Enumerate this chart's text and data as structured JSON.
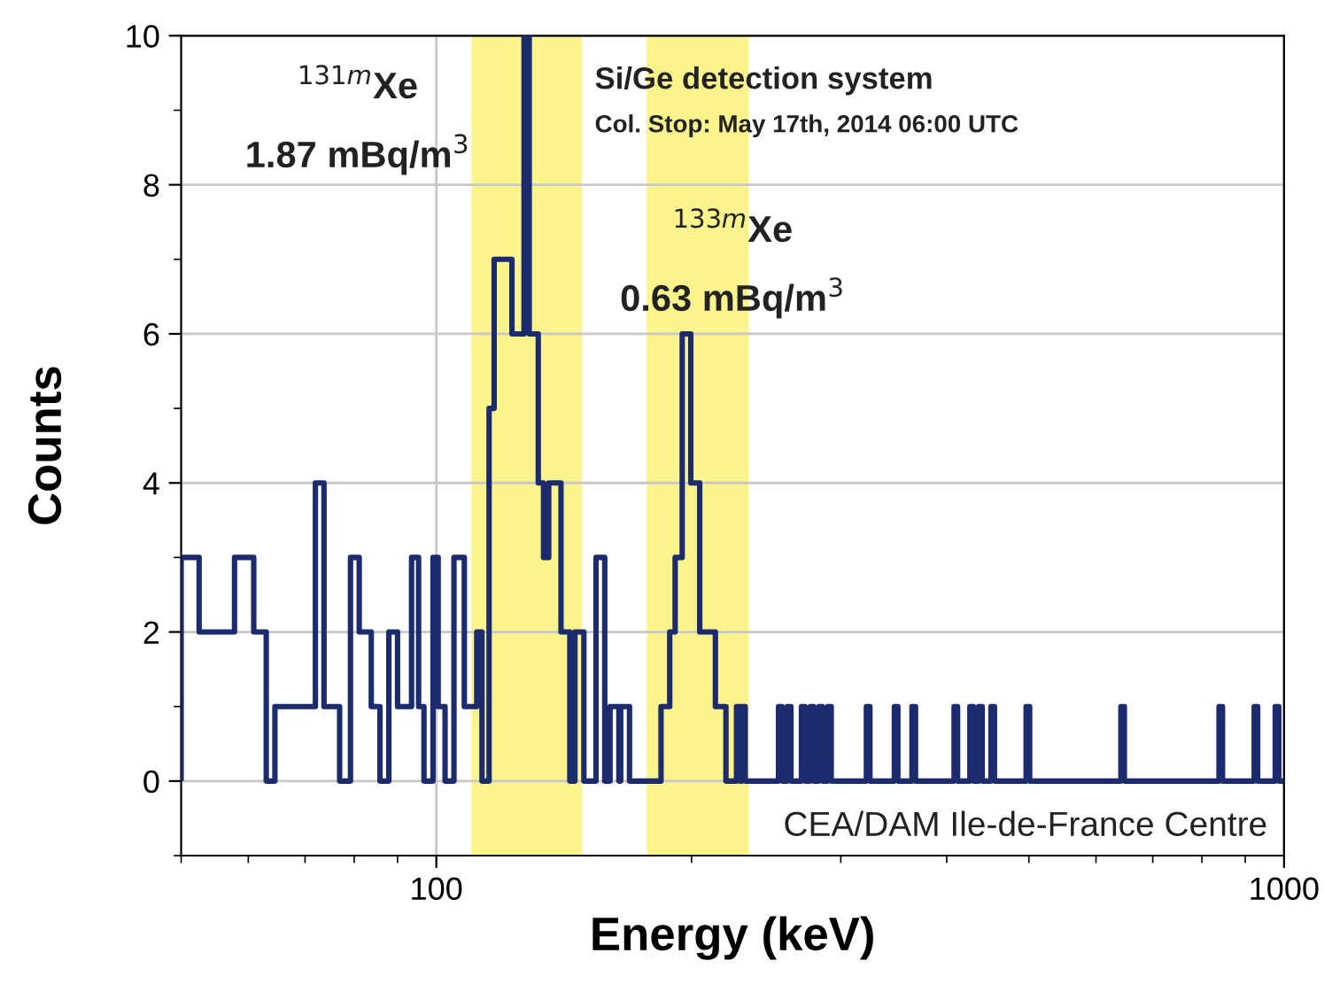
{
  "chart_data": {
    "type": "histogram",
    "xlabel": "Energy (keV)",
    "ylabel": "Counts",
    "bins": [
      50,
      52.5,
      57.8,
      60.9,
      63.0,
      64.5,
      72.0,
      73.7,
      76.9,
      79.2,
      81.1,
      83.8,
      85.8,
      87.9,
      90.0,
      93.5,
      95.3,
      96.7,
      99.1,
      100.5,
      102.4,
      104.9,
      107.9,
      111.6,
      113.2,
      115.4,
      117.0,
      122.8,
      126.9,
      128.7,
      131.9,
      133.8,
      135.7,
      140.3,
      143.7,
      145.7,
      149.3,
      154.3,
      158.0,
      160.3,
      164.2,
      165.0,
      169.0,
      184.1,
      188.5,
      191.3,
      195.0,
      199.6,
      204.5,
      213.4,
      219.6,
      226.0,
      228.2,
      229.3,
      231.4,
      253.3,
      255.8,
      259.5,
      262.0,
      269.6,
      272.2,
      276.1,
      278.7,
      282.7,
      285.4,
      289.5,
      292.3,
      321.6,
      324.7,
      347.0,
      350.3,
      364.0,
      367.5,
      408.1,
      412.0,
      426.0,
      430.1,
      436.3,
      440.5,
      451.1,
      455.4,
      496.3,
      501.1,
      642.0,
      648.1,
      838.1,
      846.1,
      922.1,
      930.9,
      976.3,
      985.8,
      1000
    ],
    "values": [
      3,
      2,
      3,
      2,
      0,
      1,
      4,
      1,
      0,
      3,
      2,
      1,
      0,
      2,
      1,
      3,
      1,
      0,
      3,
      1,
      0,
      3,
      1,
      2,
      0,
      5,
      7,
      6,
      10,
      6,
      4,
      3,
      4,
      2,
      0,
      2,
      0,
      3,
      0,
      1,
      0,
      1,
      0,
      1,
      2,
      3,
      6,
      4,
      2,
      1,
      0,
      1,
      0,
      1,
      0,
      1,
      0,
      1,
      0,
      1,
      0,
      1,
      0,
      1,
      0,
      1,
      0,
      1,
      0,
      1,
      0,
      1,
      0,
      1,
      0,
      1,
      0,
      1,
      0,
      1,
      0,
      1,
      0,
      1,
      0,
      1,
      0,
      1,
      0,
      1,
      0
    ],
    "color": "#1c2b6e",
    "log": "x",
    "xlim": [
      50,
      1000
    ],
    "xticks": [
      100,
      1000
    ],
    "ylim": [
      -1,
      10
    ],
    "yticks": [
      {
        "value": -1,
        "label": null
      },
      0,
      {
        "value": 1,
        "label": null
      },
      2,
      {
        "value": 3,
        "label": null
      },
      4,
      {
        "value": 5,
        "label": null
      },
      6,
      {
        "value": 7,
        "label": null
      },
      8,
      {
        "value": 9,
        "label": null
      },
      10
    ],
    "grid": true,
    "bands": [
      {
        "axis": "x",
        "from": 110.0,
        "to": 148.5,
        "color": "#fbf38c"
      },
      {
        "axis": "x",
        "from": 177.1,
        "to": 233.7,
        "color": "#fbf38c"
      }
    ],
    "annotations": [
      "$^{131m}$Xe",
      "1.87 mBq/m$^{3}$",
      "$^{133m}$Xe",
      "0.63 mBq/m$^{3}$",
      "Si/Ge detection system",
      "Col. Stop: May 17th, 2014 06:00 UTC",
      "CEA/DAM Ile-de-France Centre"
    ]
  }
}
